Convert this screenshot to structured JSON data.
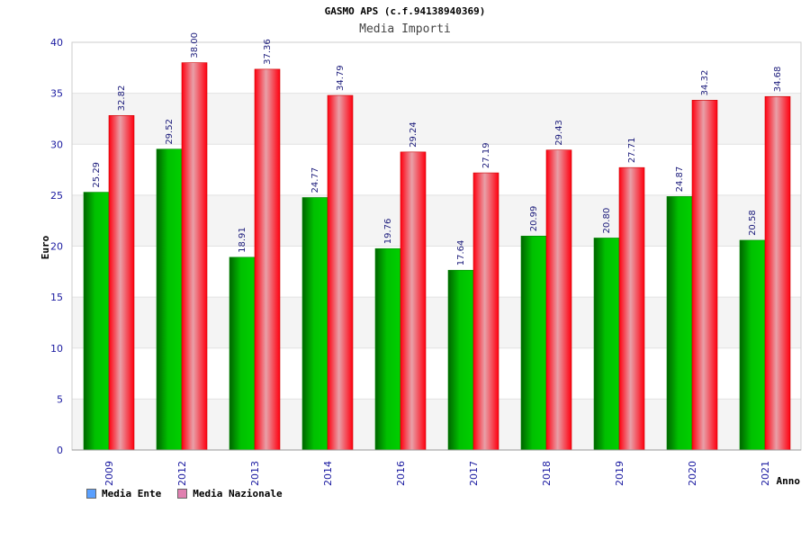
{
  "title": "GASMO APS (c.f.94138940369)",
  "subtitle": "Media Importi",
  "colors": {
    "ente": "#00b000",
    "nazionale": "#ff1a2a",
    "legend_ente": "#5aa0ff",
    "legend_nazionale": "#e080b0"
  },
  "chart_data": {
    "type": "bar",
    "title": "GASMO APS (c.f.94138940369)",
    "subtitle": "Media Importi",
    "xlabel": "Anno",
    "ylabel": "Euro",
    "ylim": [
      0,
      40
    ],
    "yticks": [
      0,
      5,
      10,
      15,
      20,
      25,
      30,
      35,
      40
    ],
    "categories": [
      "2009",
      "2012",
      "2013",
      "2014",
      "2016",
      "2017",
      "2018",
      "2019",
      "2020",
      "2021"
    ],
    "series": [
      {
        "name": "Media Ente",
        "values": [
          25.29,
          29.52,
          18.91,
          24.77,
          19.76,
          17.64,
          20.99,
          20.8,
          24.87,
          20.58
        ],
        "labels": [
          "25.29",
          "29.52",
          "18.91",
          "24.77",
          "19.76",
          "17.64",
          "20.99",
          "20.80",
          "24.87",
          "20.58"
        ]
      },
      {
        "name": "Media Nazionale",
        "values": [
          32.82,
          38.0,
          37.36,
          34.79,
          29.24,
          27.19,
          29.43,
          27.71,
          34.32,
          34.68
        ],
        "labels": [
          "32.82",
          "38.00",
          "37.36",
          "34.79",
          "29.24",
          "27.19",
          "29.43",
          "27.71",
          "34.32",
          "34.68"
        ]
      }
    ],
    "grid": true,
    "legend": "bottom-left"
  }
}
